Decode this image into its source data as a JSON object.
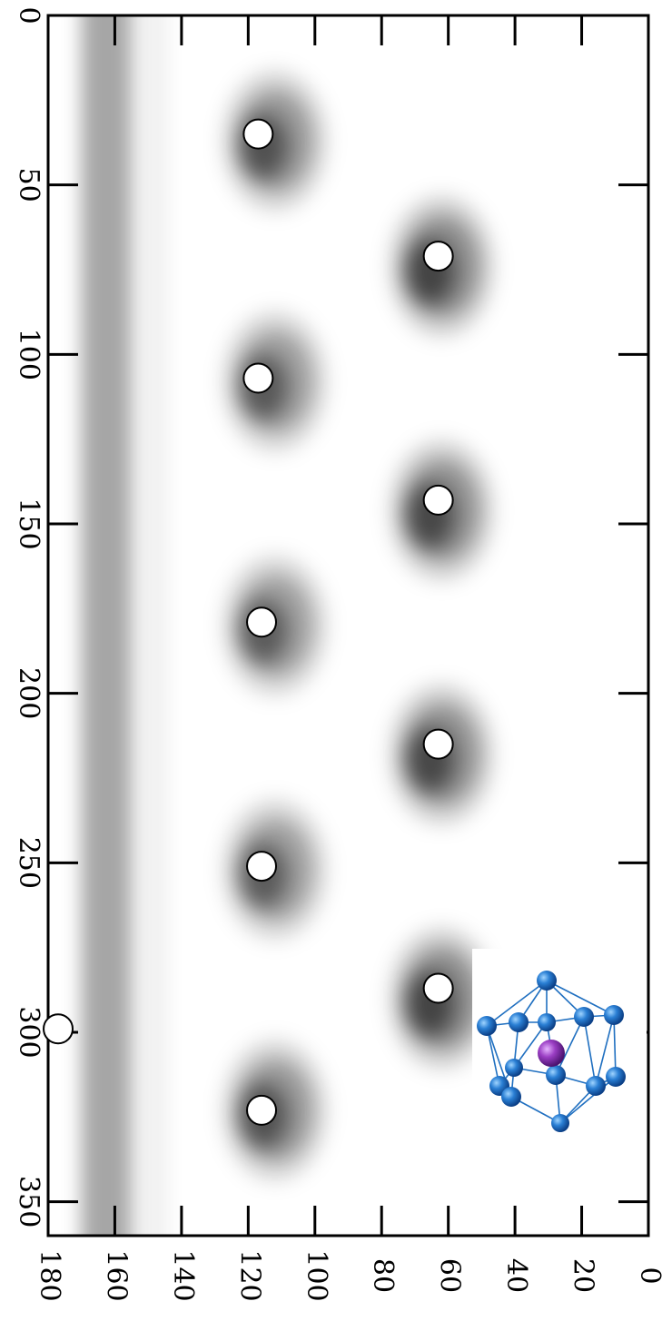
{
  "chart_data": {
    "type": "heatmap",
    "title": "",
    "xlabel": "",
    "ylabel": "",
    "horizontal_axis": {
      "range": [
        0,
        180
      ],
      "reversed": true,
      "ticks": [
        0,
        20,
        40,
        60,
        80,
        100,
        120,
        140,
        160,
        180
      ]
    },
    "vertical_axis": {
      "range": [
        0,
        360
      ],
      "ticks": [
        0,
        50,
        100,
        150,
        200,
        250,
        300,
        350
      ]
    },
    "grid": false,
    "colormap": "grayscale, darker = higher density",
    "density_peaks": [
      {
        "theta": 112,
        "phi": 37,
        "strength": 0.85
      },
      {
        "theta": 112,
        "phi": 108,
        "strength": 0.8
      },
      {
        "theta": 112,
        "phi": 180,
        "strength": 0.78
      },
      {
        "theta": 112,
        "phi": 252,
        "strength": 0.78
      },
      {
        "theta": 112,
        "phi": 323,
        "strength": 0.85
      },
      {
        "theta": 62,
        "phi": 74,
        "strength": 0.95
      },
      {
        "theta": 62,
        "phi": 146,
        "strength": 0.92
      },
      {
        "theta": 62,
        "phi": 218,
        "strength": 0.92
      },
      {
        "theta": 62,
        "phi": 290,
        "strength": 0.95
      }
    ],
    "band": {
      "theta_range": [
        155,
        170
      ],
      "strength": 0.35
    },
    "markers": [
      {
        "theta": 117,
        "phi": 35
      },
      {
        "theta": 63,
        "phi": 71
      },
      {
        "theta": 117,
        "phi": 107
      },
      {
        "theta": 63,
        "phi": 143
      },
      {
        "theta": 116,
        "phi": 179
      },
      {
        "theta": 63,
        "phi": 215
      },
      {
        "theta": 116,
        "phi": 251
      },
      {
        "theta": 63,
        "phi": 287
      },
      {
        "theta": 177,
        "phi": 299
      },
      {
        "theta": 116,
        "phi": 323
      }
    ],
    "inset": {
      "description_icon": "cluster-structure-icon",
      "cage_color": "#2a7fd4",
      "center_atom_color": "#9b3fc4"
    }
  }
}
